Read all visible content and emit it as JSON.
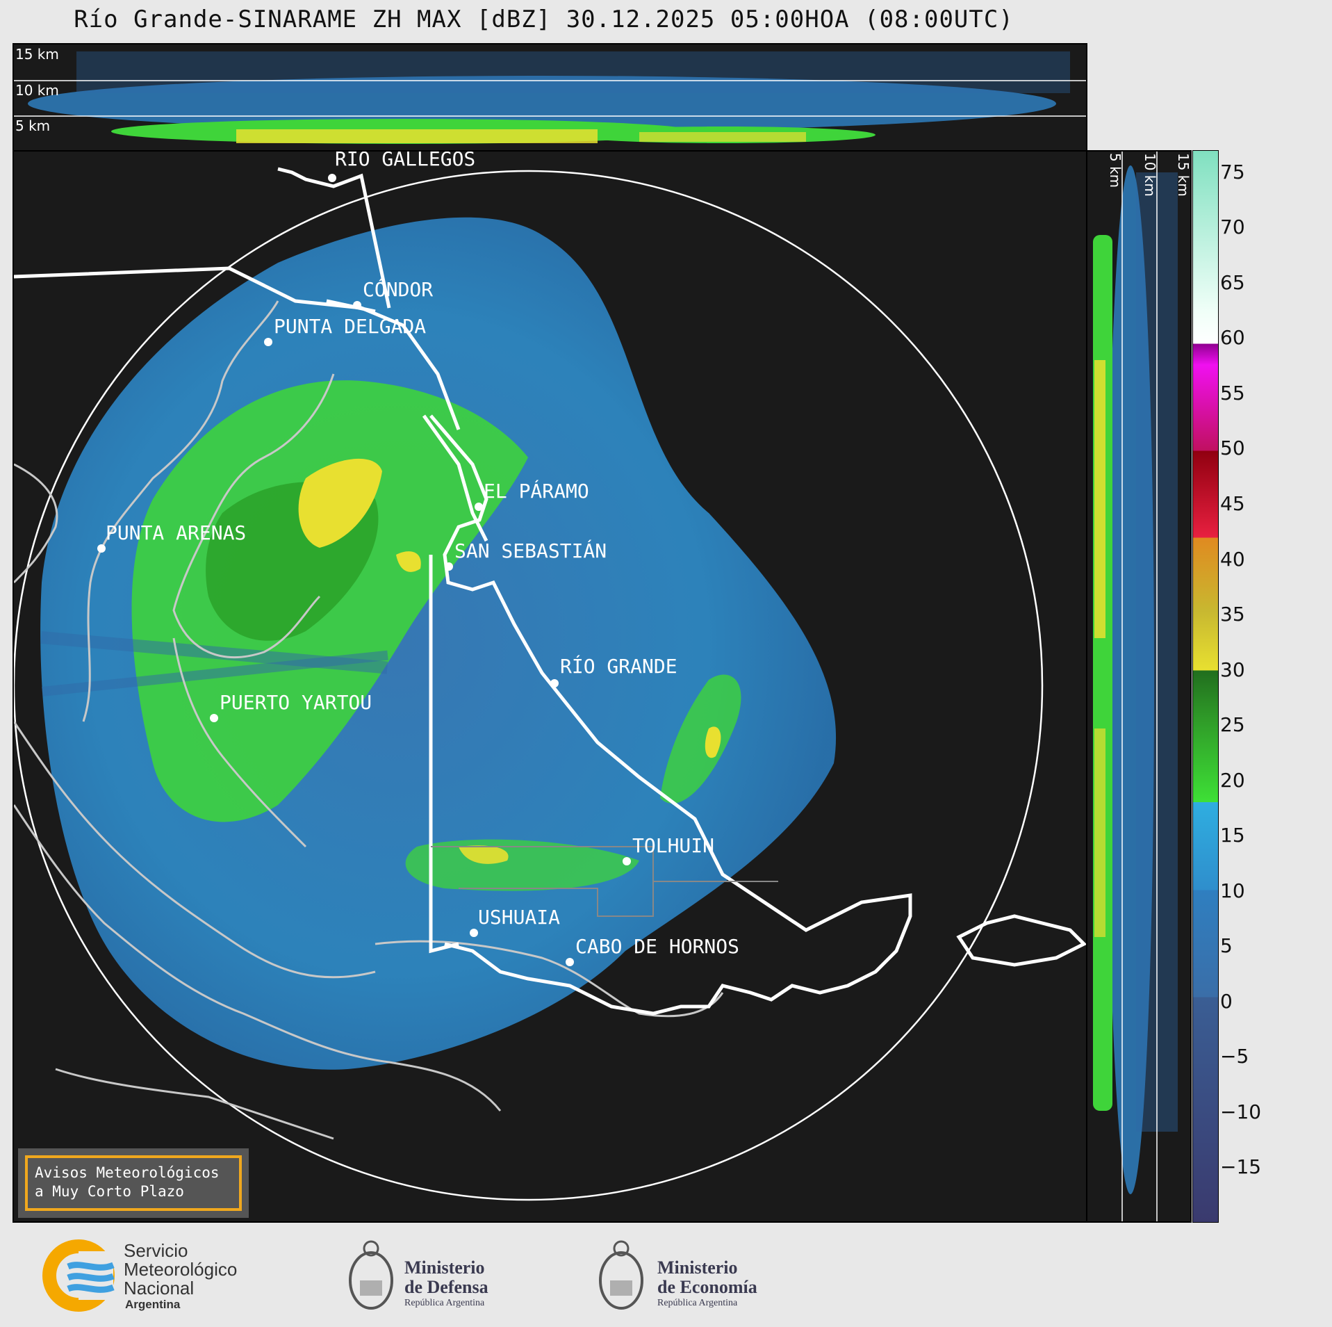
{
  "title": "Río Grande-SINARAME ZH MAX [dBZ] 30.12.2025 05:00HOA (08:00UTC)",
  "top_panel": {
    "height_labels": [
      "15 km",
      "10 km",
      "5 km"
    ]
  },
  "side_panel": {
    "height_labels": [
      "5 km",
      "10 km",
      "15 km"
    ]
  },
  "cities": [
    {
      "name": "RÍO GALLEGOS"
    },
    {
      "name": "CÓNDOR"
    },
    {
      "name": "PUNTA DELGADA"
    },
    {
      "name": "PUNTA ARENAS"
    },
    {
      "name": "EL PÁRAMO"
    },
    {
      "name": "SAN SEBASTIÁN"
    },
    {
      "name": "RÍO GRANDE"
    },
    {
      "name": "PUERTO YARTOU"
    },
    {
      "name": "TOLHUIN"
    },
    {
      "name": "USHUAIA"
    },
    {
      "name": "CABO DE HORNOS"
    }
  ],
  "colorbar": {
    "unit": "dBZ",
    "ticks": [
      "75",
      "70",
      "65",
      "60",
      "55",
      "50",
      "45",
      "40",
      "35",
      "30",
      "25",
      "20",
      "15",
      "10",
      "5",
      "0",
      "−5",
      "−10",
      "−15"
    ],
    "range": [
      -20,
      77
    ],
    "colors": {
      "below_0": "#3a3a6e",
      "0_10": "#3a6ea8",
      "10_18": "#2f9ad6",
      "18_30": "#3fd43a",
      "30_42": "#e8e030",
      "42_50": "#e01030",
      "50_58": "#e020c0",
      "60_77": "#80e0c0"
    }
  },
  "avisos": {
    "line1": "Avisos Meteorológicos",
    "line2": "a Muy Corto Plazo"
  },
  "logos": {
    "smn": {
      "line1": "Servicio",
      "line2": "Meteorológico",
      "line3": "Nacional",
      "line4": "Argentina"
    },
    "defensa": {
      "line1": "Ministerio",
      "line2": "de Defensa",
      "line3": "República Argentina"
    },
    "economia": {
      "line1": "Ministerio",
      "line2": "de Economía",
      "line3": "República Argentina"
    }
  }
}
